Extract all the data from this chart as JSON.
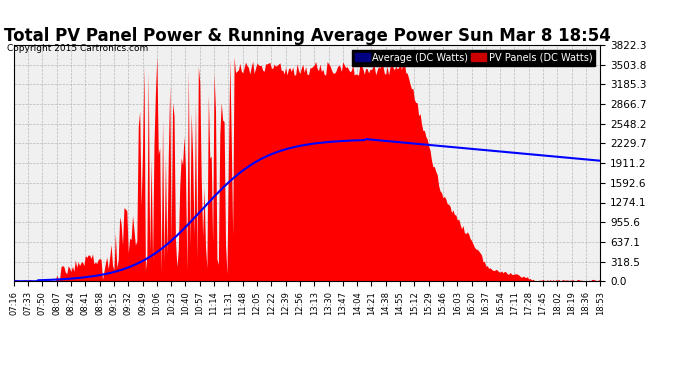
{
  "title": "Total PV Panel Power & Running Average Power Sun Mar 8 18:54",
  "copyright": "Copyright 2015 Cartronics.com",
  "legend_labels": [
    "Average (DC Watts)",
    "PV Panels (DC Watts)"
  ],
  "legend_bg_colors": [
    "#000080",
    "#cc0000"
  ],
  "y_ticks": [
    0.0,
    318.5,
    637.1,
    955.6,
    1274.1,
    1592.6,
    1911.2,
    2229.7,
    2548.2,
    2866.7,
    3185.3,
    3503.8,
    3822.3
  ],
  "y_max": 3822.3,
  "background_color": "#ffffff",
  "plot_bg_color": "#f0f0f0",
  "grid_color": "#aaaaaa",
  "title_fontsize": 12,
  "x_tick_labels": [
    "07:16",
    "07:33",
    "07:50",
    "08:07",
    "08:24",
    "08:41",
    "08:58",
    "09:15",
    "09:32",
    "09:49",
    "10:06",
    "10:23",
    "10:40",
    "10:57",
    "11:14",
    "11:31",
    "11:48",
    "12:05",
    "12:22",
    "12:39",
    "12:56",
    "13:13",
    "13:30",
    "13:47",
    "14:04",
    "14:21",
    "14:38",
    "14:55",
    "15:12",
    "15:29",
    "15:46",
    "16:03",
    "16:20",
    "16:37",
    "16:54",
    "17:11",
    "17:28",
    "17:45",
    "18:02",
    "18:19",
    "18:36",
    "18:53"
  ]
}
